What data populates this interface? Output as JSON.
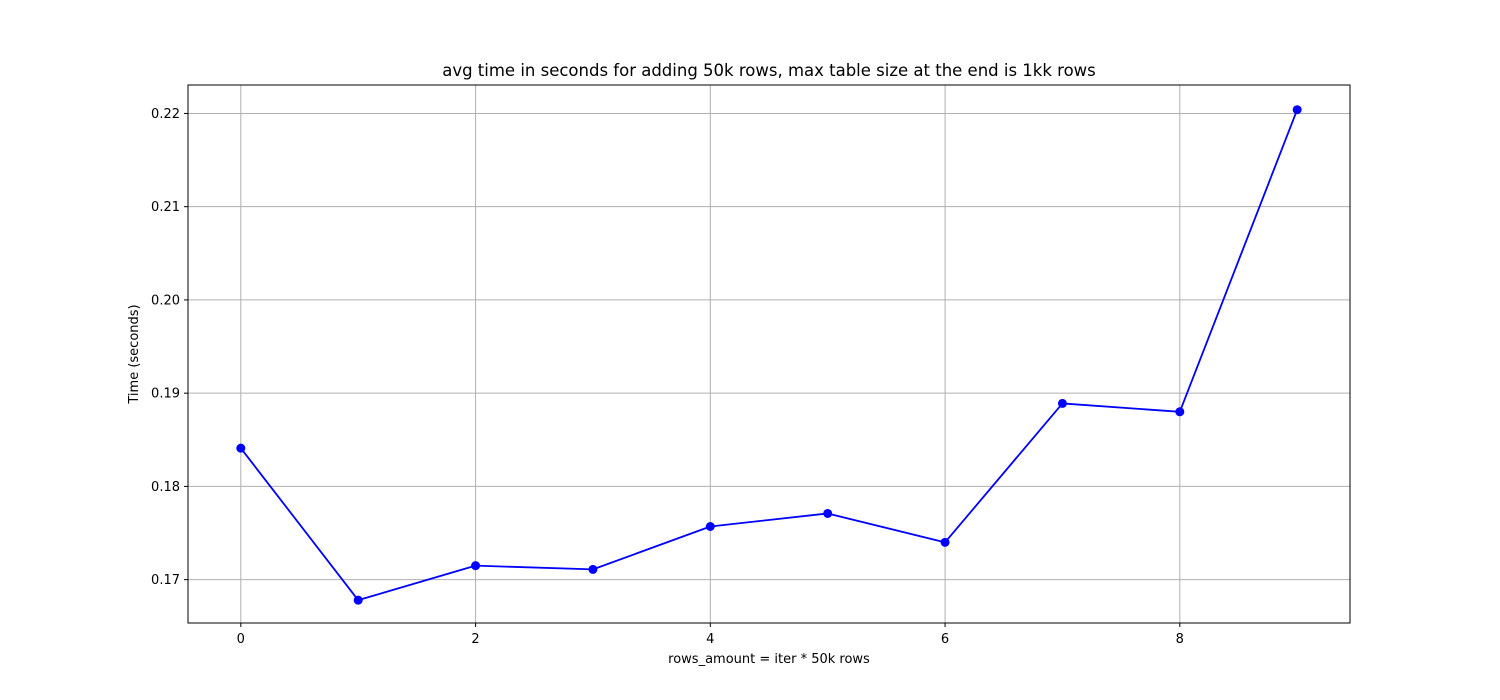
{
  "chart_data": {
    "type": "line",
    "title": "avg time in seconds for adding 50k rows, max table size at the end is 1kk rows",
    "xlabel": "rows_amount = iter * 50k rows",
    "ylabel": "Time (seconds)",
    "x": [
      0,
      1,
      2,
      3,
      4,
      5,
      6,
      7,
      8,
      9
    ],
    "series": [
      {
        "values": [
          0.1841,
          0.1678,
          0.1715,
          0.1711,
          0.1757,
          0.1771,
          0.174,
          0.1889,
          0.188,
          0.2204
        ],
        "color": "#0000ff",
        "marker": "circle"
      }
    ],
    "xlim": [
      -0.45,
      9.45
    ],
    "ylim": [
      0.16535,
      0.22305
    ],
    "xticks": [
      0,
      2,
      4,
      6,
      8
    ],
    "yticks": [
      0.17,
      0.18,
      0.19,
      0.2,
      0.21,
      0.22
    ],
    "ytick_labels": [
      "0.17",
      "0.18",
      "0.19",
      "0.20",
      "0.21",
      "0.22"
    ],
    "grid": true,
    "colors": {
      "grid": "#b0b0b0",
      "line": "#0000ff",
      "frame": "#000000"
    }
  }
}
